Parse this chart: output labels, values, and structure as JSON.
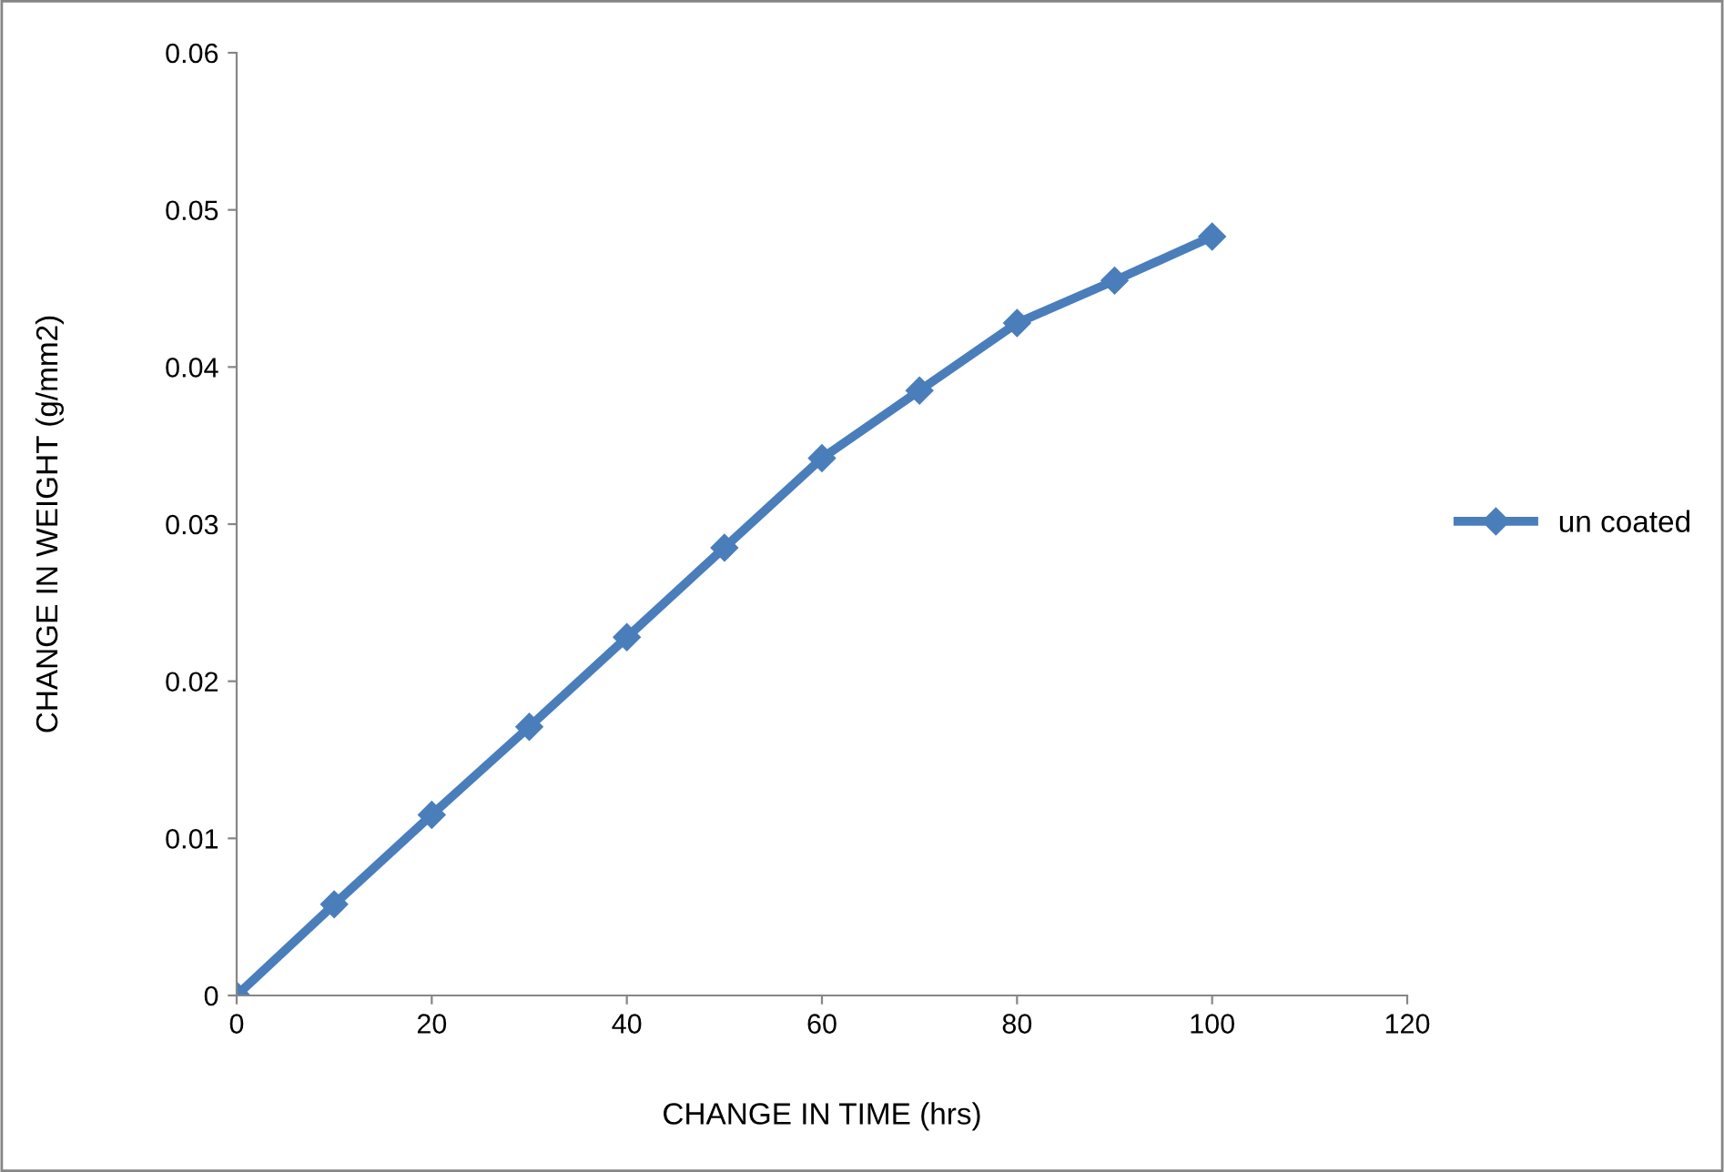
{
  "chart_data": {
    "type": "line",
    "xlabel": "CHANGE IN TIME (hrs)",
    "ylabel": "CHANGE IN WEIGHT (g/mm2)",
    "x": [
      0,
      10,
      20,
      30,
      40,
      50,
      60,
      70,
      80,
      90,
      100
    ],
    "series": [
      {
        "name": "un coated",
        "color": "#4a7ebb",
        "values": [
          0,
          0.0058,
          0.0115,
          0.0171,
          0.0228,
          0.0285,
          0.0342,
          0.0385,
          0.0428,
          0.0455,
          0.0483
        ]
      }
    ],
    "xlim": [
      0,
      120
    ],
    "xticks": [
      0,
      20,
      40,
      60,
      80,
      100,
      120
    ],
    "ylim": [
      0,
      0.06
    ],
    "yticks": [
      0,
      0.01,
      0.02,
      0.03,
      0.04,
      0.05,
      0.06
    ],
    "grid": false,
    "legend": "right",
    "marker": "diamond",
    "line_style": "solid"
  }
}
